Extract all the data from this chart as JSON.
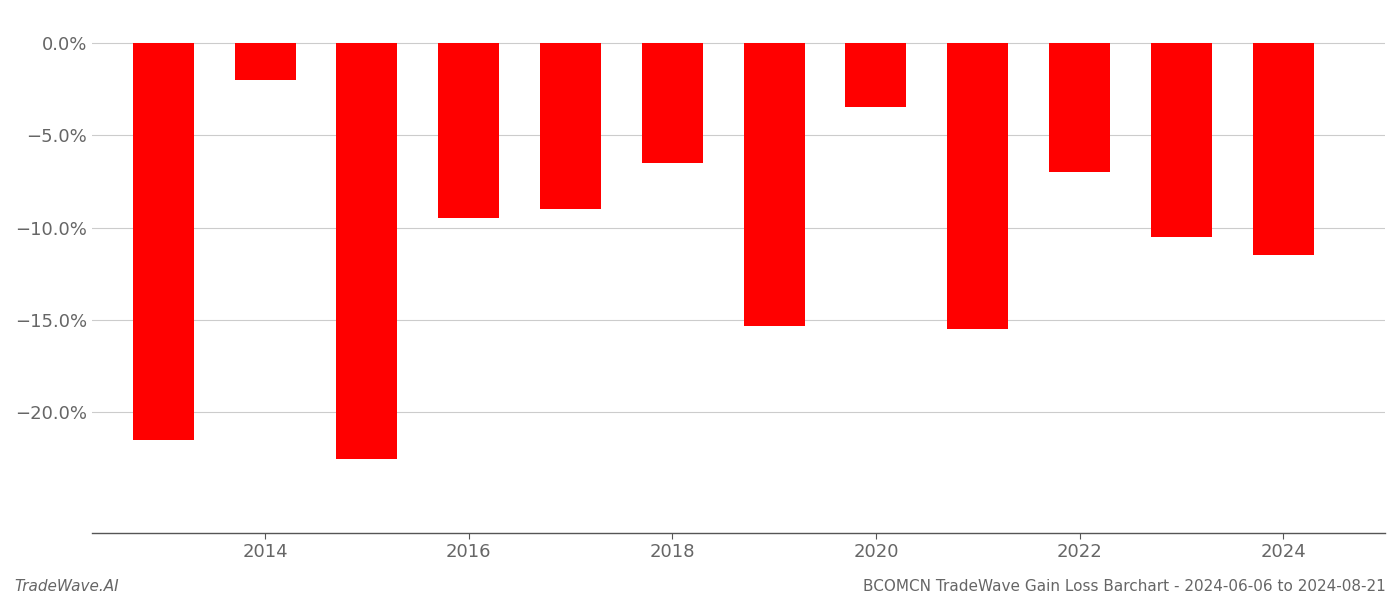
{
  "years": [
    2013,
    2014,
    2015,
    2016,
    2017,
    2018,
    2019,
    2020,
    2021,
    2022,
    2023,
    2024
  ],
  "values": [
    -0.215,
    -0.02,
    -0.225,
    -0.095,
    -0.09,
    -0.065,
    -0.153,
    -0.035,
    -0.155,
    -0.07,
    -0.105,
    -0.115
  ],
  "bar_color": "#ff0000",
  "ylim": [
    -0.265,
    0.015
  ],
  "yticks": [
    0.0,
    -0.05,
    -0.1,
    -0.15,
    -0.2
  ],
  "ytick_labels": [
    "0.0%",
    "−5.0%",
    "−10.0%",
    "−15.0%",
    "−20.0%"
  ],
  "xtick_positions": [
    2014,
    2016,
    2018,
    2020,
    2022,
    2024
  ],
  "xtick_labels": [
    "2014",
    "2016",
    "2018",
    "2020",
    "2022",
    "2024"
  ],
  "xlim": [
    2012.3,
    2025.0
  ],
  "background_color": "#ffffff",
  "grid_color": "#cccccc",
  "footer_left": "TradeWave.AI",
  "footer_right": "BCOMCN TradeWave Gain Loss Barchart - 2024-06-06 to 2024-08-21",
  "footer_fontsize": 11,
  "tick_fontsize": 13,
  "bar_width": 0.6
}
